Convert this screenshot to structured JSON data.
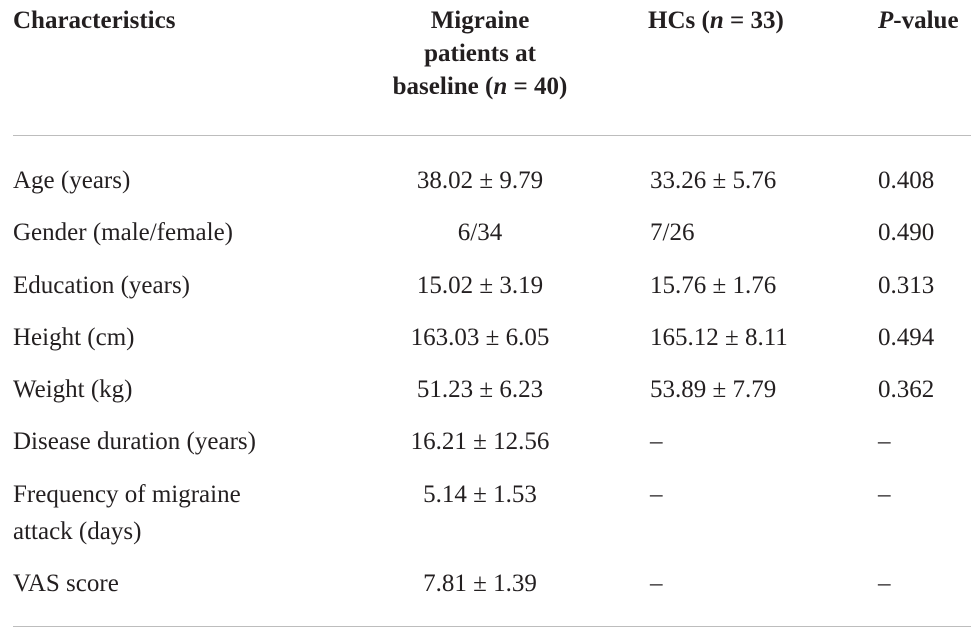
{
  "header": {
    "characteristics": "Characteristics",
    "migraine_line1": "Migraine",
    "migraine_line2": "patients at",
    "migraine_line3_prefix": "baseline (",
    "migraine_n": "n",
    "migraine_line3_suffix": " = 40)",
    "hc_prefix": "HCs (",
    "hc_n": "n",
    "hc_suffix": " = 33)",
    "p_italic": "P",
    "p_suffix": "-value"
  },
  "rows": [
    {
      "characteristic": "Age (years)",
      "migraine": "38.02 ± 9.79",
      "hc": "33.26 ± 5.76",
      "p": "0.408"
    },
    {
      "characteristic": "Gender (male/female)",
      "migraine": "6/34",
      "hc": "7/26",
      "p": "0.490"
    },
    {
      "characteristic": "Education (years)",
      "migraine": "15.02 ± 3.19",
      "hc": "15.76 ± 1.76",
      "p": "0.313"
    },
    {
      "characteristic": "Height (cm)",
      "migraine": "163.03 ± 6.05",
      "hc": "165.12 ± 8.11",
      "p": "0.494"
    },
    {
      "characteristic": "Weight (kg)",
      "migraine": "51.23 ± 6.23",
      "hc": "53.89 ± 7.79",
      "p": "0.362"
    },
    {
      "characteristic": "Disease duration (years)",
      "migraine": "16.21 ± 12.56",
      "hc": "–",
      "p": "–"
    },
    {
      "characteristic_line1": "Frequency of migraine",
      "characteristic_line2": "attack (days)",
      "migraine": "5.14 ± 1.53",
      "hc": "–",
      "p": "–"
    },
    {
      "characteristic": "VAS score",
      "migraine": "7.81 ± 1.39",
      "hc": "–",
      "p": "–"
    }
  ]
}
